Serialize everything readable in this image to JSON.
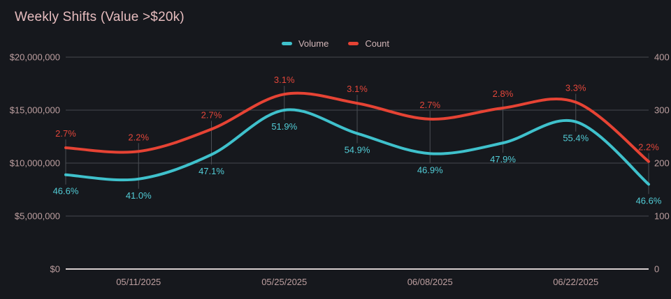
{
  "title": "Weekly Shifts (Value >$20k)",
  "colors": {
    "background": "#16181d",
    "title_text": "#e7bdbf",
    "axis_text": "#bd9fa0",
    "grid_line": "#47494e",
    "baseline": "#d8cfcf",
    "connector": "#4a4e54",
    "volume": "#3fc1cc",
    "volume_label": "#52ccd6",
    "count": "#e64334",
    "count_label": "#e2463a",
    "legend_text": "#d2b6b8"
  },
  "chart_data": {
    "type": "line",
    "title": "Weekly Shifts (Value >$20k)",
    "smooth": true,
    "grid": true,
    "legend_position": "top-center",
    "num_points": 9,
    "x_tick_labels": [
      "05/11/2025",
      "05/25/2025",
      "06/08/2025",
      "06/22/2025"
    ],
    "x_tick_point_indices": [
      1,
      3,
      5,
      7
    ],
    "left_axis": {
      "min": 0,
      "max": 20000000,
      "tick_labels": [
        "$20,000,000",
        "$15,000,000",
        "$10,000,000",
        "$5,000,000",
        "$0"
      ]
    },
    "right_axis": {
      "min": 0,
      "max": 400,
      "tick_labels": [
        "400",
        "300",
        "200",
        "100",
        "0"
      ]
    },
    "series": [
      {
        "name": "Volume",
        "yaxis": "left",
        "values": [
          8900000,
          8500000,
          10800000,
          15000000,
          12800000,
          10900000,
          11900000,
          13900000,
          8000000
        ],
        "point_labels": [
          "46.6%",
          "41.0%",
          "47.1%",
          "51.9%",
          "54.9%",
          "46.9%",
          "47.9%",
          "55.4%",
          "46.6%"
        ],
        "label_side": "below"
      },
      {
        "name": "Count",
        "yaxis": "right",
        "values": [
          229,
          222,
          264,
          330,
          313,
          283,
          304,
          315,
          203
        ],
        "point_labels": [
          "2.7%",
          "2.2%",
          "2.7%",
          "3.1%",
          "3.1%",
          "2.7%",
          "2.8%",
          "3.3%",
          "2.2%"
        ],
        "label_side": "above"
      }
    ]
  }
}
